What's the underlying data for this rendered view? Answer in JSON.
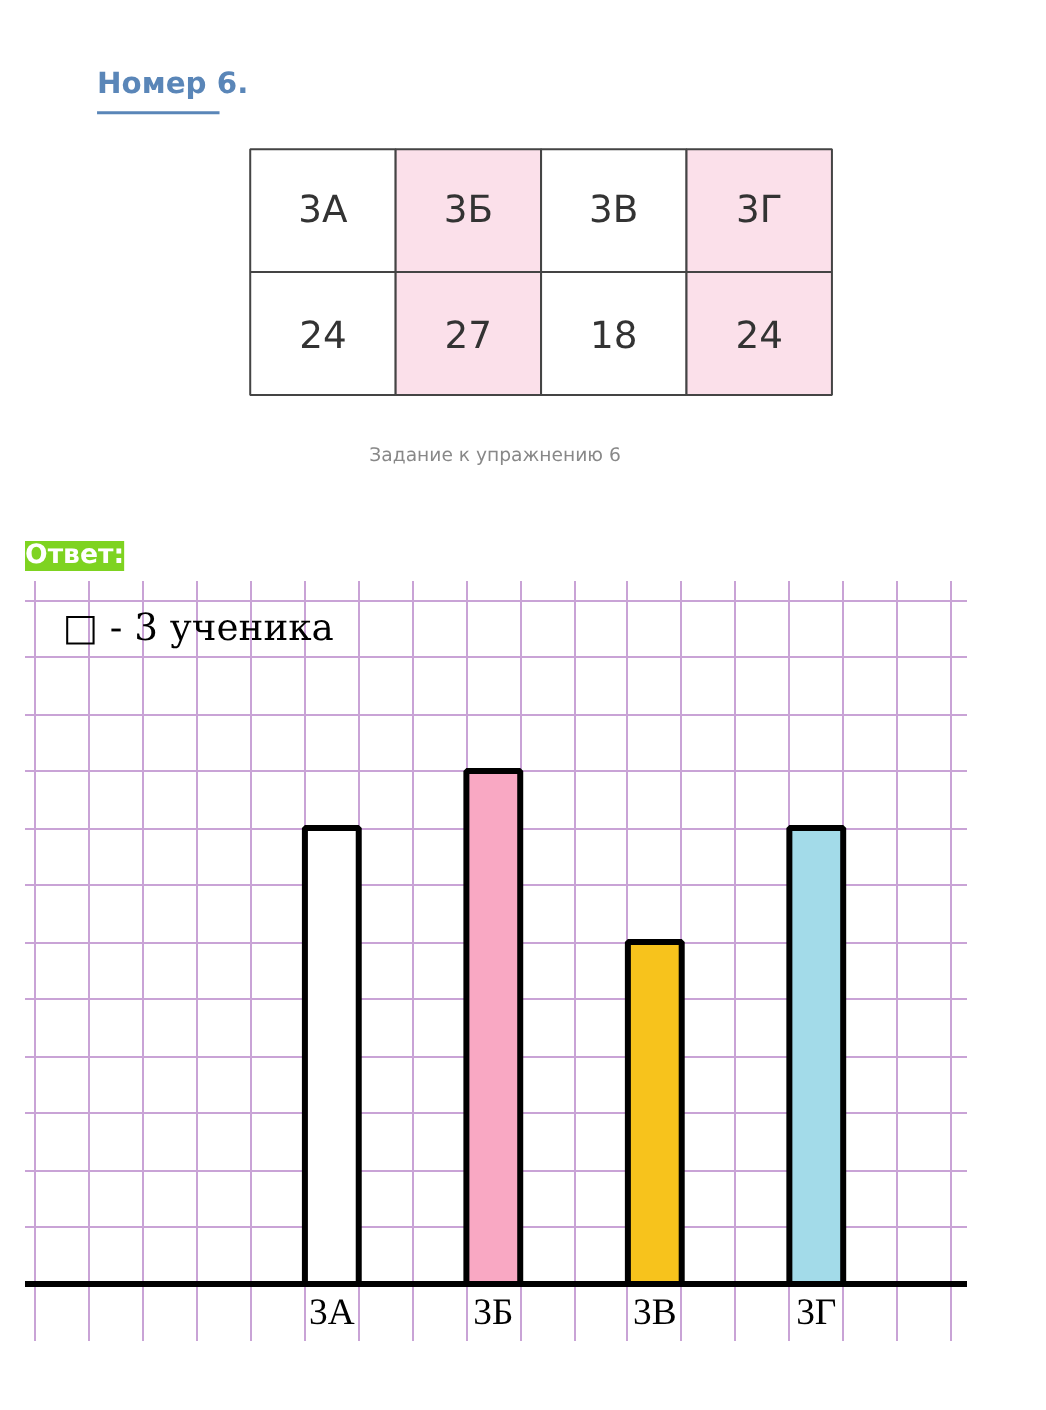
{
  "chart_data": {
    "type": "bar",
    "title": "Номер 6.",
    "categories": [
      "3А",
      "3Б",
      "3В",
      "3Г"
    ],
    "values": [
      24,
      27,
      18,
      24
    ],
    "colors": [
      "#ffffff",
      "#f9a8c3",
      "#f7c31c",
      "#a3dbe9"
    ],
    "data_labels": true,
    "ylim": [
      -3,
      37
    ],
    "yticks": [
      {
        "value": 3,
        "label": null
      },
      {
        "value": 6,
        "label": null
      },
      {
        "value": 9,
        "label": null
      },
      {
        "value": 12,
        "label": null
      },
      {
        "value": 15,
        "label": null
      },
      {
        "value": 18,
        "label": null
      },
      {
        "value": 21,
        "label": null
      },
      {
        "value": 24,
        "label": null
      },
      {
        "value": 27,
        "label": null
      },
      {
        "value": 30,
        "label": null
      },
      {
        "value": 33,
        "label": null
      },
      {
        "value": 36,
        "label": null
      }
    ],
    "grid": true,
    "annotations": [
      "Задание к упражнению 6",
      "Ответ:",
      "□ - 3 ученика"
    ]
  }
}
